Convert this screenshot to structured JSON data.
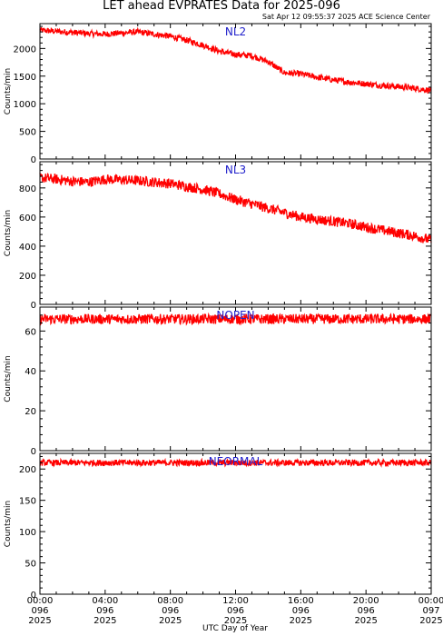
{
  "title": "LET ahead EVPRATES Data for 2025-096",
  "subtitle": "Sat Apr 12 09:55:37 2025 ACE Science Center",
  "xlabel": "UTC Day of Year",
  "colors": {
    "series": "#ff0000",
    "panel_label": "#2222cc",
    "axes": "#000000",
    "background": "#ffffff"
  },
  "x_ticks": [
    {
      "time": "00:00",
      "day": "096",
      "year": "2025"
    },
    {
      "time": "04:00",
      "day": "096",
      "year": "2025"
    },
    {
      "time": "08:00",
      "day": "096",
      "year": "2025"
    },
    {
      "time": "12:00",
      "day": "096",
      "year": "2025"
    },
    {
      "time": "16:00",
      "day": "096",
      "year": "2025"
    },
    {
      "time": "20:00",
      "day": "096",
      "year": "2025"
    },
    {
      "time": "00:00",
      "day": "097",
      "year": "2025"
    }
  ],
  "chart_data": [
    {
      "type": "line",
      "label": "NL2",
      "ylabel": "Counts/min",
      "xlim": [
        0,
        24
      ],
      "ylim": [
        0,
        2450
      ],
      "yticks": [
        0,
        500,
        1000,
        1500,
        2000
      ],
      "x": [
        0,
        1,
        2,
        3,
        4,
        5,
        6,
        7,
        8,
        9,
        10,
        11,
        12,
        13,
        14,
        15,
        16,
        17,
        18,
        19,
        20,
        21,
        22,
        23,
        24
      ],
      "values": [
        2330,
        2310,
        2290,
        2270,
        2260,
        2280,
        2300,
        2260,
        2220,
        2150,
        2060,
        1950,
        1890,
        1870,
        1760,
        1560,
        1540,
        1480,
        1430,
        1390,
        1360,
        1330,
        1310,
        1280,
        1240
      ],
      "noise": 55
    },
    {
      "type": "line",
      "label": "NL3",
      "ylabel": "Counts/min",
      "xlim": [
        0,
        24
      ],
      "ylim": [
        0,
        980
      ],
      "yticks": [
        0,
        200,
        400,
        600,
        800
      ],
      "x": [
        0,
        1,
        2,
        3,
        4,
        5,
        6,
        7,
        8,
        9,
        10,
        11,
        12,
        13,
        14,
        15,
        16,
        17,
        18,
        19,
        20,
        21,
        22,
        23,
        24
      ],
      "values": [
        870,
        860,
        845,
        840,
        860,
        855,
        850,
        840,
        830,
        810,
        790,
        760,
        720,
        690,
        660,
        630,
        600,
        585,
        570,
        555,
        530,
        510,
        490,
        470,
        440
      ],
      "noise": 35
    },
    {
      "type": "line",
      "label": "NOPEN",
      "ylabel": "Counts/min",
      "xlim": [
        0,
        24
      ],
      "ylim": [
        0,
        72
      ],
      "yticks": [
        0,
        20,
        40,
        60
      ],
      "x": [
        0,
        6,
        12,
        18,
        24
      ],
      "values": [
        66,
        66,
        66,
        66,
        66
      ],
      "noise": 2.5
    },
    {
      "type": "line",
      "label": "NEORMAL",
      "ylabel": "Counts/min",
      "xlim": [
        0,
        24
      ],
      "ylim": [
        0,
        225
      ],
      "yticks": [
        0,
        50,
        100,
        150,
        200
      ],
      "x": [
        0,
        6,
        12,
        18,
        24
      ],
      "values": [
        210,
        210,
        210,
        210,
        210
      ],
      "noise": 5
    }
  ]
}
